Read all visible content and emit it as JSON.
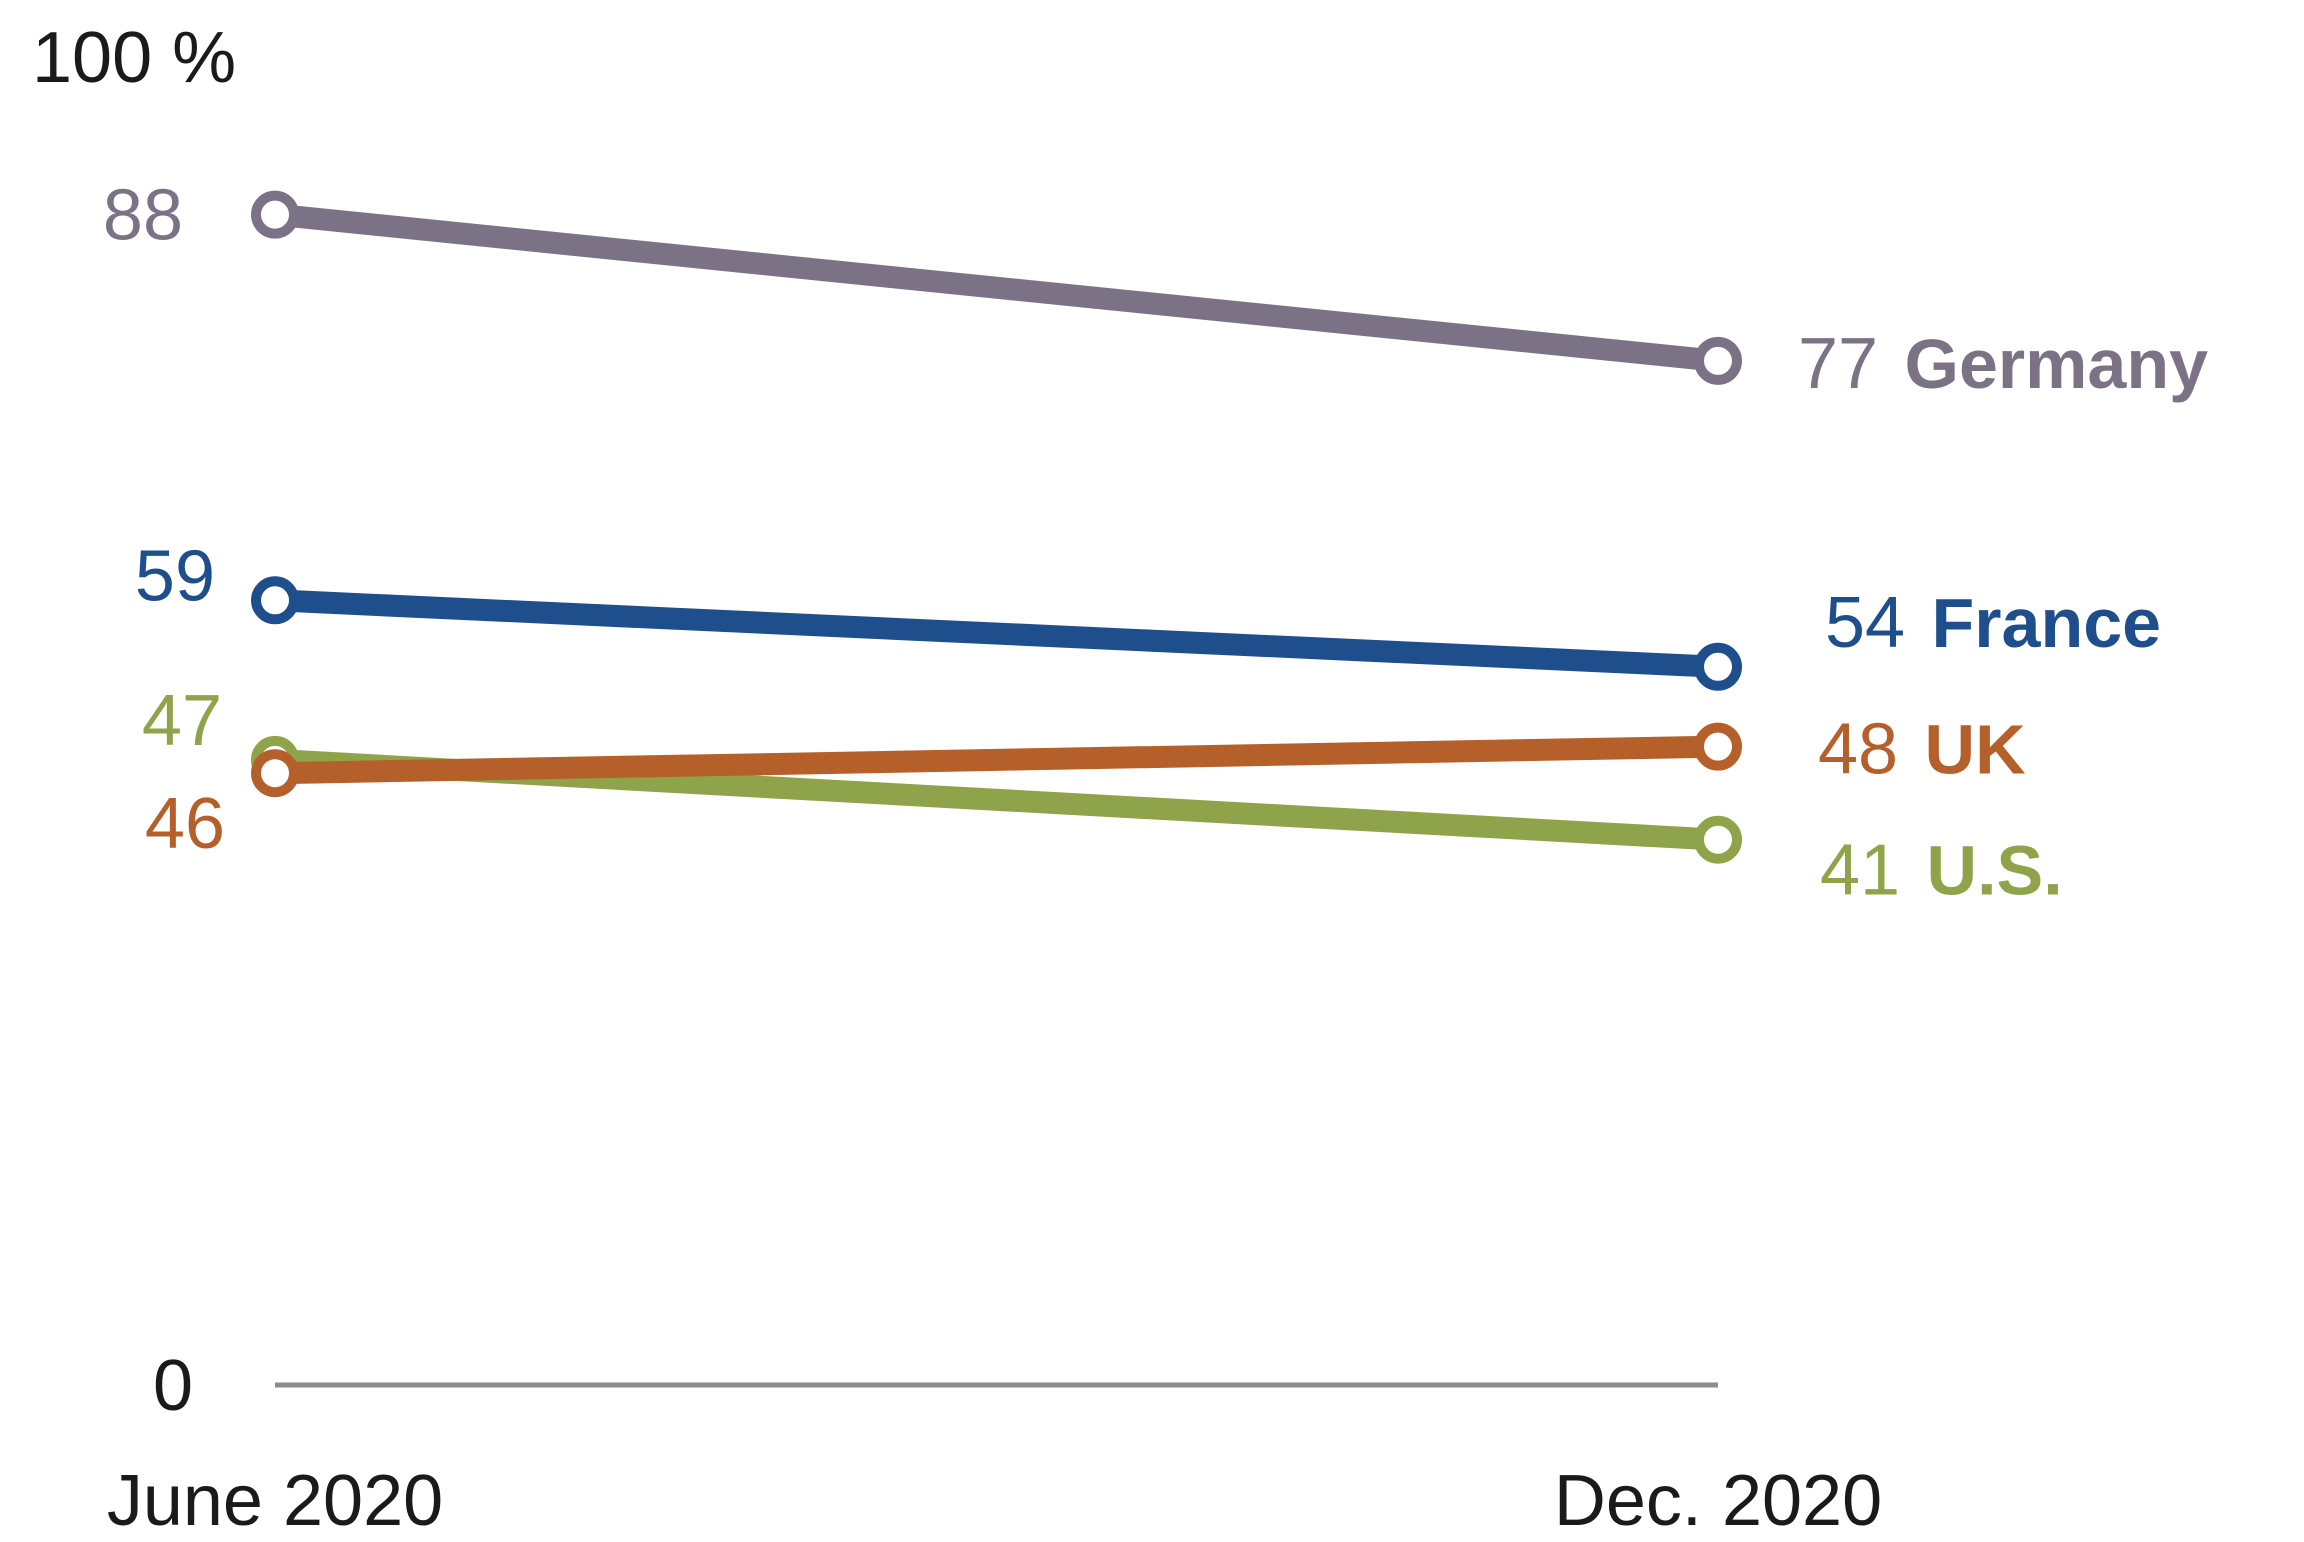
{
  "chart_data": {
    "type": "line",
    "categories": [
      "June 2020",
      "Dec. 2020"
    ],
    "series": [
      {
        "name": "Germany",
        "values": [
          88,
          77
        ],
        "color": "#7b7385"
      },
      {
        "name": "France",
        "values": [
          59,
          54
        ],
        "color": "#1f4e8c"
      },
      {
        "name": "UK",
        "values": [
          46,
          48
        ],
        "color": "#b5602a"
      },
      {
        "name": "U.S.",
        "values": [
          47,
          41
        ],
        "color": "#8fa34a"
      }
    ],
    "ylim": [
      0,
      100
    ],
    "y_ticks": [
      {
        "value": 0,
        "label": "0"
      },
      {
        "value": 100,
        "label": "100 %"
      }
    ],
    "baseline_color": "#8c8c8c",
    "title": "",
    "xlabel": "",
    "ylabel": "",
    "grid": false,
    "legend": "direct-labels-right"
  }
}
